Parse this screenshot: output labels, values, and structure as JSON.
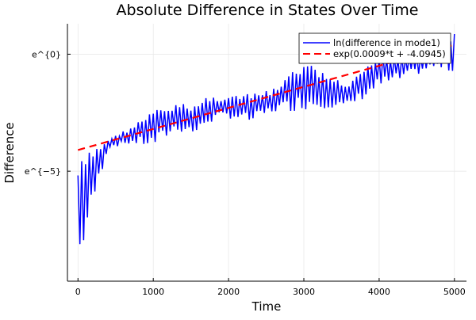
{
  "chart_data": {
    "type": "line",
    "title": "Absolute Difference in States Over Time",
    "xlabel": "Time",
    "ylabel": "Difference",
    "xlim": [
      -140,
      5160
    ],
    "ylim_log": [
      -9.7,
      1.3
    ],
    "xticks": [
      0,
      1000,
      2000,
      3000,
      4000,
      5000
    ],
    "xtick_labels": [
      "0",
      "1000",
      "2000",
      "3000",
      "4000",
      "5000"
    ],
    "yticks_log": [
      0,
      -5
    ],
    "ytick_labels": [
      "e^{0}",
      "e^{−5}"
    ],
    "grid": true,
    "legend_position": "top-right",
    "series": [
      {
        "name": "ln(difference in mode1)",
        "color": "#0000ff",
        "style": "solid",
        "oscillation_period": 50,
        "envelope_t": [
          0,
          200,
          400,
          700,
          1000,
          1300,
          1600,
          1700,
          2000,
          2300,
          2600,
          3000,
          3300,
          3550,
          3800,
          4000,
          4300,
          4700,
          5000
        ],
        "envelope_upper_log": [
          -4.6,
          -4.0,
          -3.65,
          -3.1,
          -2.4,
          -2.14,
          -2.07,
          -1.8,
          -1.74,
          -1.7,
          -1.47,
          -0.29,
          -0.83,
          -1.3,
          -0.7,
          0.04,
          0.04,
          0.15,
          0.95
        ],
        "envelope_lower_log": [
          -9.35,
          -6.5,
          -4.0,
          -3.85,
          -4.0,
          -3.3,
          -3.5,
          -3.0,
          -2.74,
          -2.97,
          -2.5,
          -2.4,
          -2.3,
          -2.4,
          -1.9,
          -1.5,
          -1.17,
          -0.62,
          -0.83
        ]
      },
      {
        "name": "exp(0.0009*t + -4.0945)",
        "color": "#ff0000",
        "style": "dashed",
        "slope": 0.0009,
        "intercept": -4.0945,
        "t_range": [
          0,
          5000
        ]
      }
    ]
  }
}
